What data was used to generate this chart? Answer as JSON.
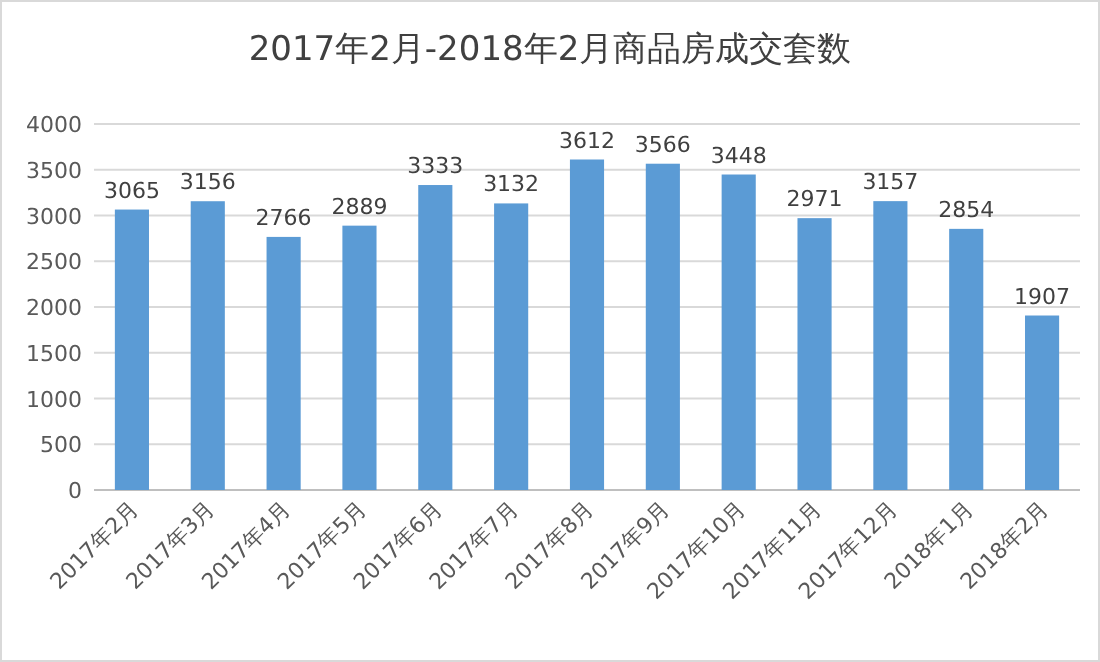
{
  "chart_data": {
    "type": "bar",
    "title": "2017年2月-2018年2月商品房成交套数",
    "categories": [
      "2017年2月",
      "2017年3月",
      "2017年4月",
      "2017年5月",
      "2017年6月",
      "2017年7月",
      "2017年8月",
      "2017年9月",
      "2017年10月",
      "2017年11月",
      "2017年12月",
      "2018年1月",
      "2018年2月"
    ],
    "values": [
      3065,
      3156,
      2766,
      2889,
      3333,
      3132,
      3612,
      3566,
      3448,
      2971,
      3157,
      2854,
      1907
    ],
    "color": "#5b9bd5",
    "ylim": [
      0,
      4000
    ],
    "yticks": [
      0,
      500,
      1000,
      1500,
      2000,
      2500,
      3000,
      3500,
      4000
    ],
    "grid": "y",
    "data_labels": true
  }
}
